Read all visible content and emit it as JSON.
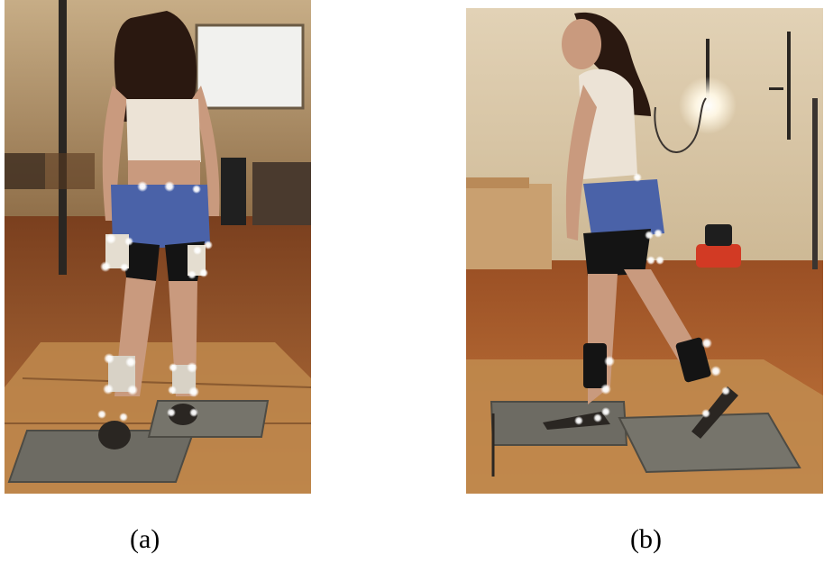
{
  "figure": {
    "panels": [
      {
        "caption": "(a)",
        "view": "back",
        "marker_color": "#ffffff"
      },
      {
        "caption": "(b)",
        "view": "side",
        "marker_color": "#ffffff"
      }
    ],
    "colors": {
      "floor": "#8a4a26",
      "wall": "#d9c6a8",
      "force_plate": "#6d6b63",
      "shorts": "#4a62a8",
      "leggings": "#141414",
      "top": "#ece3d6",
      "hair": "#2a1810",
      "skin": "#c99a7e"
    }
  }
}
